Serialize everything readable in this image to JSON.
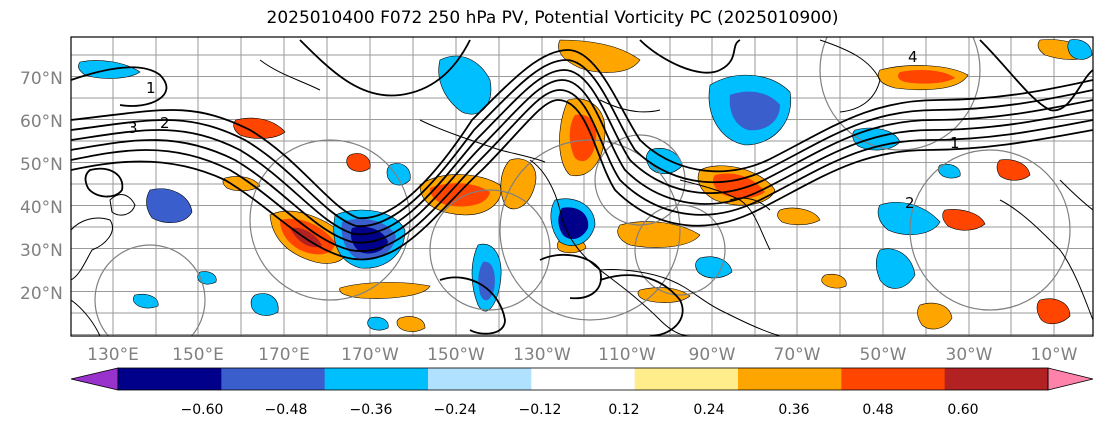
{
  "title": "2025010400 F072 250 hPa PV, Potential Vorticity PC (2025010900)",
  "lat_labels": [
    "70°N",
    "60°N",
    "50°N",
    "40°N",
    "30°N",
    "20°N"
  ],
  "lon_labels": [
    "130°E",
    "150°E",
    "170°E",
    "170°W",
    "150°W",
    "130°W",
    "110°W",
    "90°W",
    "70°W",
    "50°W",
    "30°W",
    "10°W"
  ],
  "contour_labels": [
    "1",
    "2",
    "3",
    "4"
  ],
  "colorbar": {
    "ticks": [
      "−0.60",
      "−0.48",
      "−0.36",
      "−0.24",
      "−0.12",
      "0.12",
      "0.24",
      "0.36",
      "0.48",
      "0.60"
    ],
    "colors": [
      "#9932cc",
      "#00008b",
      "#3a5fcd",
      "#00bfff",
      "#b0e2ff",
      "#ffffff",
      "#ffec8b",
      "#ffa500",
      "#ff4500",
      "#b22222",
      "#ff82ab"
    ]
  }
}
